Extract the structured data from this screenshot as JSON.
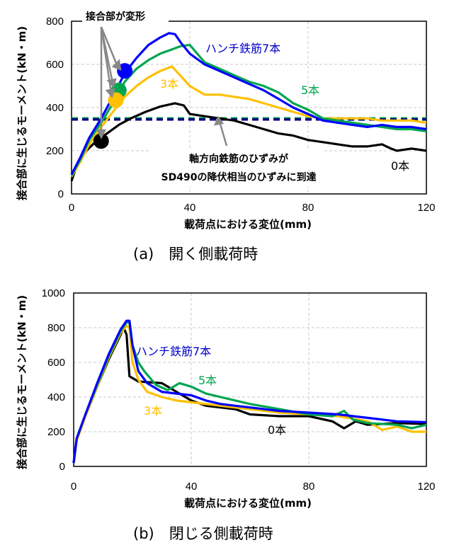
{
  "chart_data": [
    {
      "type": "line",
      "caption": "(a)　開く側載荷時",
      "xlabel": "載荷点における変位(mm)",
      "ylabel": "接合部に生じるモーメント(kN・m)",
      "xlim": [
        0,
        120
      ],
      "ylim": [
        0,
        800
      ],
      "xticks": [
        "0",
        "40",
        "80",
        "120"
      ],
      "yticks": [
        "0",
        "200",
        "400",
        "600",
        "800"
      ],
      "grid": true,
      "series": [
        {
          "name": "ハンチ鉄筋7本",
          "color": "#0000FF",
          "label_color": "#0000CC",
          "points": [
            [
              0,
              90
            ],
            [
              3,
              170
            ],
            [
              6,
              260
            ],
            [
              10,
              350
            ],
            [
              14,
              450
            ],
            [
              18,
              560
            ],
            [
              22,
              630
            ],
            [
              26,
              690
            ],
            [
              30,
              725
            ],
            [
              33,
              745
            ],
            [
              35,
              740
            ],
            [
              37,
              700
            ],
            [
              40,
              650
            ],
            [
              45,
              600
            ],
            [
              50,
              570
            ],
            [
              55,
              540
            ],
            [
              60,
              510
            ],
            [
              65,
              480
            ],
            [
              70,
              440
            ],
            [
              75,
              400
            ],
            [
              80,
              370
            ],
            [
              85,
              340
            ],
            [
              90,
              330
            ],
            [
              95,
              320
            ],
            [
              100,
              310
            ],
            [
              105,
              320
            ],
            [
              110,
              310
            ],
            [
              115,
              310
            ],
            [
              120,
              300
            ]
          ]
        },
        {
          "name": "5本",
          "color": "#00A550",
          "label_color": "#00A550",
          "points": [
            [
              0,
              85
            ],
            [
              3,
              160
            ],
            [
              6,
              250
            ],
            [
              10,
              330
            ],
            [
              14,
              420
            ],
            [
              18,
              520
            ],
            [
              22,
              580
            ],
            [
              26,
              620
            ],
            [
              30,
              650
            ],
            [
              33,
              665
            ],
            [
              37,
              685
            ],
            [
              40,
              690
            ],
            [
              45,
              610
            ],
            [
              50,
              580
            ],
            [
              55,
              550
            ],
            [
              60,
              520
            ],
            [
              65,
              500
            ],
            [
              70,
              470
            ],
            [
              75,
              420
            ],
            [
              80,
              390
            ],
            [
              85,
              350
            ],
            [
              90,
              340
            ],
            [
              95,
              330
            ],
            [
              100,
              320
            ],
            [
              105,
              310
            ],
            [
              110,
              300
            ],
            [
              115,
              300
            ],
            [
              120,
              290
            ]
          ]
        },
        {
          "name": "3本",
          "color": "#FFC000",
          "label_color": "#FFC000",
          "points": [
            [
              0,
              80
            ],
            [
              3,
              150
            ],
            [
              6,
              230
            ],
            [
              10,
              310
            ],
            [
              14,
              380
            ],
            [
              18,
              450
            ],
            [
              22,
              500
            ],
            [
              26,
              540
            ],
            [
              30,
              570
            ],
            [
              34,
              590
            ],
            [
              36,
              560
            ],
            [
              40,
              500
            ],
            [
              45,
              460
            ],
            [
              50,
              460
            ],
            [
              55,
              450
            ],
            [
              60,
              440
            ],
            [
              65,
              420
            ],
            [
              70,
              400
            ],
            [
              75,
              380
            ],
            [
              80,
              360
            ],
            [
              85,
              350
            ],
            [
              90,
              350
            ],
            [
              95,
              350
            ],
            [
              100,
              350
            ],
            [
              105,
              340
            ],
            [
              110,
              340
            ],
            [
              115,
              340
            ],
            [
              120,
              330
            ]
          ]
        },
        {
          "name": "0本",
          "color": "#000000",
          "label_color": "#000000",
          "points": [
            [
              0,
              60
            ],
            [
              2,
              140
            ],
            [
              5,
              200
            ],
            [
              8,
              240
            ],
            [
              12,
              280
            ],
            [
              16,
              320
            ],
            [
              20,
              350
            ],
            [
              25,
              380
            ],
            [
              30,
              405
            ],
            [
              35,
              420
            ],
            [
              38,
              410
            ],
            [
              40,
              370
            ],
            [
              45,
              360
            ],
            [
              50,
              350
            ],
            [
              55,
              340
            ],
            [
              60,
              320
            ],
            [
              65,
              300
            ],
            [
              70,
              280
            ],
            [
              75,
              270
            ],
            [
              80,
              250
            ],
            [
              85,
              240
            ],
            [
              90,
              230
            ],
            [
              95,
              220
            ],
            [
              100,
              220
            ],
            [
              105,
              230
            ],
            [
              108,
              210
            ],
            [
              110,
              200
            ],
            [
              115,
              210
            ],
            [
              120,
              200
            ]
          ]
        }
      ],
      "reference_lines": [
        {
          "y": 350,
          "color": "#00A550",
          "style": "dashed"
        },
        {
          "y": 345,
          "color": "#000080",
          "style": "dashed"
        }
      ],
      "markers": [
        {
          "x": 18,
          "y": 570,
          "color": "#0000FF"
        },
        {
          "x": 16,
          "y": 480,
          "color": "#00A550"
        },
        {
          "x": 15,
          "y": 435,
          "color": "#FFC000"
        },
        {
          "x": 10,
          "y": 245,
          "color": "#000000"
        }
      ],
      "annotations": [
        "接合部が変形",
        "軸方向鉄筋のひずみが",
        "SD490の降伏相当のひずみに到達"
      ]
    },
    {
      "type": "line",
      "caption": "(b)　閉じる側載荷時",
      "xlabel": "載荷点における変位(mm)",
      "ylabel": "接合部に生じるモーメント(kN・m)",
      "xlim": [
        0,
        120
      ],
      "ylim": [
        0,
        1000
      ],
      "xticks": [
        "0",
        "40",
        "80",
        "120"
      ],
      "yticks": [
        "0",
        "200",
        "400",
        "600",
        "800",
        "1000"
      ],
      "grid": true,
      "series": [
        {
          "name": "ハンチ鉄筋7本",
          "color": "#0000FF",
          "label_color": "#0000CC",
          "points": [
            [
              0,
              20
            ],
            [
              1,
              160
            ],
            [
              4,
              300
            ],
            [
              8,
              480
            ],
            [
              12,
              650
            ],
            [
              16,
              790
            ],
            [
              18,
              840
            ],
            [
              19,
              840
            ],
            [
              20,
              700
            ],
            [
              22,
              550
            ],
            [
              25,
              480
            ],
            [
              30,
              430
            ],
            [
              35,
              420
            ],
            [
              40,
              410
            ],
            [
              45,
              380
            ],
            [
              50,
              360
            ],
            [
              55,
              350
            ],
            [
              60,
              340
            ],
            [
              70,
              320
            ],
            [
              80,
              310
            ],
            [
              90,
              300
            ],
            [
              100,
              280
            ],
            [
              110,
              260
            ],
            [
              120,
              255
            ]
          ]
        },
        {
          "name": "5本",
          "color": "#00A550",
          "label_color": "#00A550",
          "points": [
            [
              0,
              20
            ],
            [
              1,
              160
            ],
            [
              4,
              300
            ],
            [
              8,
              470
            ],
            [
              12,
              640
            ],
            [
              16,
              780
            ],
            [
              18,
              830
            ],
            [
              19,
              830
            ],
            [
              20,
              700
            ],
            [
              22,
              600
            ],
            [
              24,
              550
            ],
            [
              28,
              470
            ],
            [
              32,
              440
            ],
            [
              36,
              480
            ],
            [
              40,
              460
            ],
            [
              45,
              420
            ],
            [
              50,
              400
            ],
            [
              60,
              360
            ],
            [
              70,
              330
            ],
            [
              80,
              300
            ],
            [
              88,
              290
            ],
            [
              92,
              320
            ],
            [
              95,
              270
            ],
            [
              100,
              250
            ],
            [
              110,
              240
            ],
            [
              115,
              220
            ],
            [
              120,
              240
            ]
          ]
        },
        {
          "name": "3本",
          "color": "#FFC000",
          "label_color": "#FFC000",
          "points": [
            [
              0,
              20
            ],
            [
              1,
              150
            ],
            [
              4,
              290
            ],
            [
              8,
              460
            ],
            [
              12,
              630
            ],
            [
              16,
              770
            ],
            [
              18,
              810
            ],
            [
              19,
              800
            ],
            [
              20,
              600
            ],
            [
              22,
              500
            ],
            [
              25,
              430
            ],
            [
              30,
              400
            ],
            [
              35,
              380
            ],
            [
              40,
              370
            ],
            [
              50,
              350
            ],
            [
              60,
              330
            ],
            [
              70,
              310
            ],
            [
              80,
              300
            ],
            [
              90,
              290
            ],
            [
              100,
              260
            ],
            [
              105,
              210
            ],
            [
              110,
              230
            ],
            [
              115,
              200
            ],
            [
              120,
              200
            ]
          ]
        },
        {
          "name": "0本",
          "color": "#000000",
          "label_color": "#000000",
          "points": [
            [
              0,
              20
            ],
            [
              1,
              150
            ],
            [
              4,
              290
            ],
            [
              8,
              460
            ],
            [
              12,
              620
            ],
            [
              16,
              760
            ],
            [
              17,
              800
            ],
            [
              18,
              760
            ],
            [
              19,
              520
            ],
            [
              22,
              490
            ],
            [
              30,
              480
            ],
            [
              33,
              450
            ],
            [
              38,
              400
            ],
            [
              40,
              380
            ],
            [
              45,
              350
            ],
            [
              55,
              330
            ],
            [
              60,
              300
            ],
            [
              70,
              290
            ],
            [
              80,
              290
            ],
            [
              88,
              260
            ],
            [
              92,
              220
            ],
            [
              96,
              260
            ],
            [
              100,
              240
            ],
            [
              110,
              250
            ],
            [
              120,
              245
            ]
          ]
        }
      ]
    }
  ]
}
